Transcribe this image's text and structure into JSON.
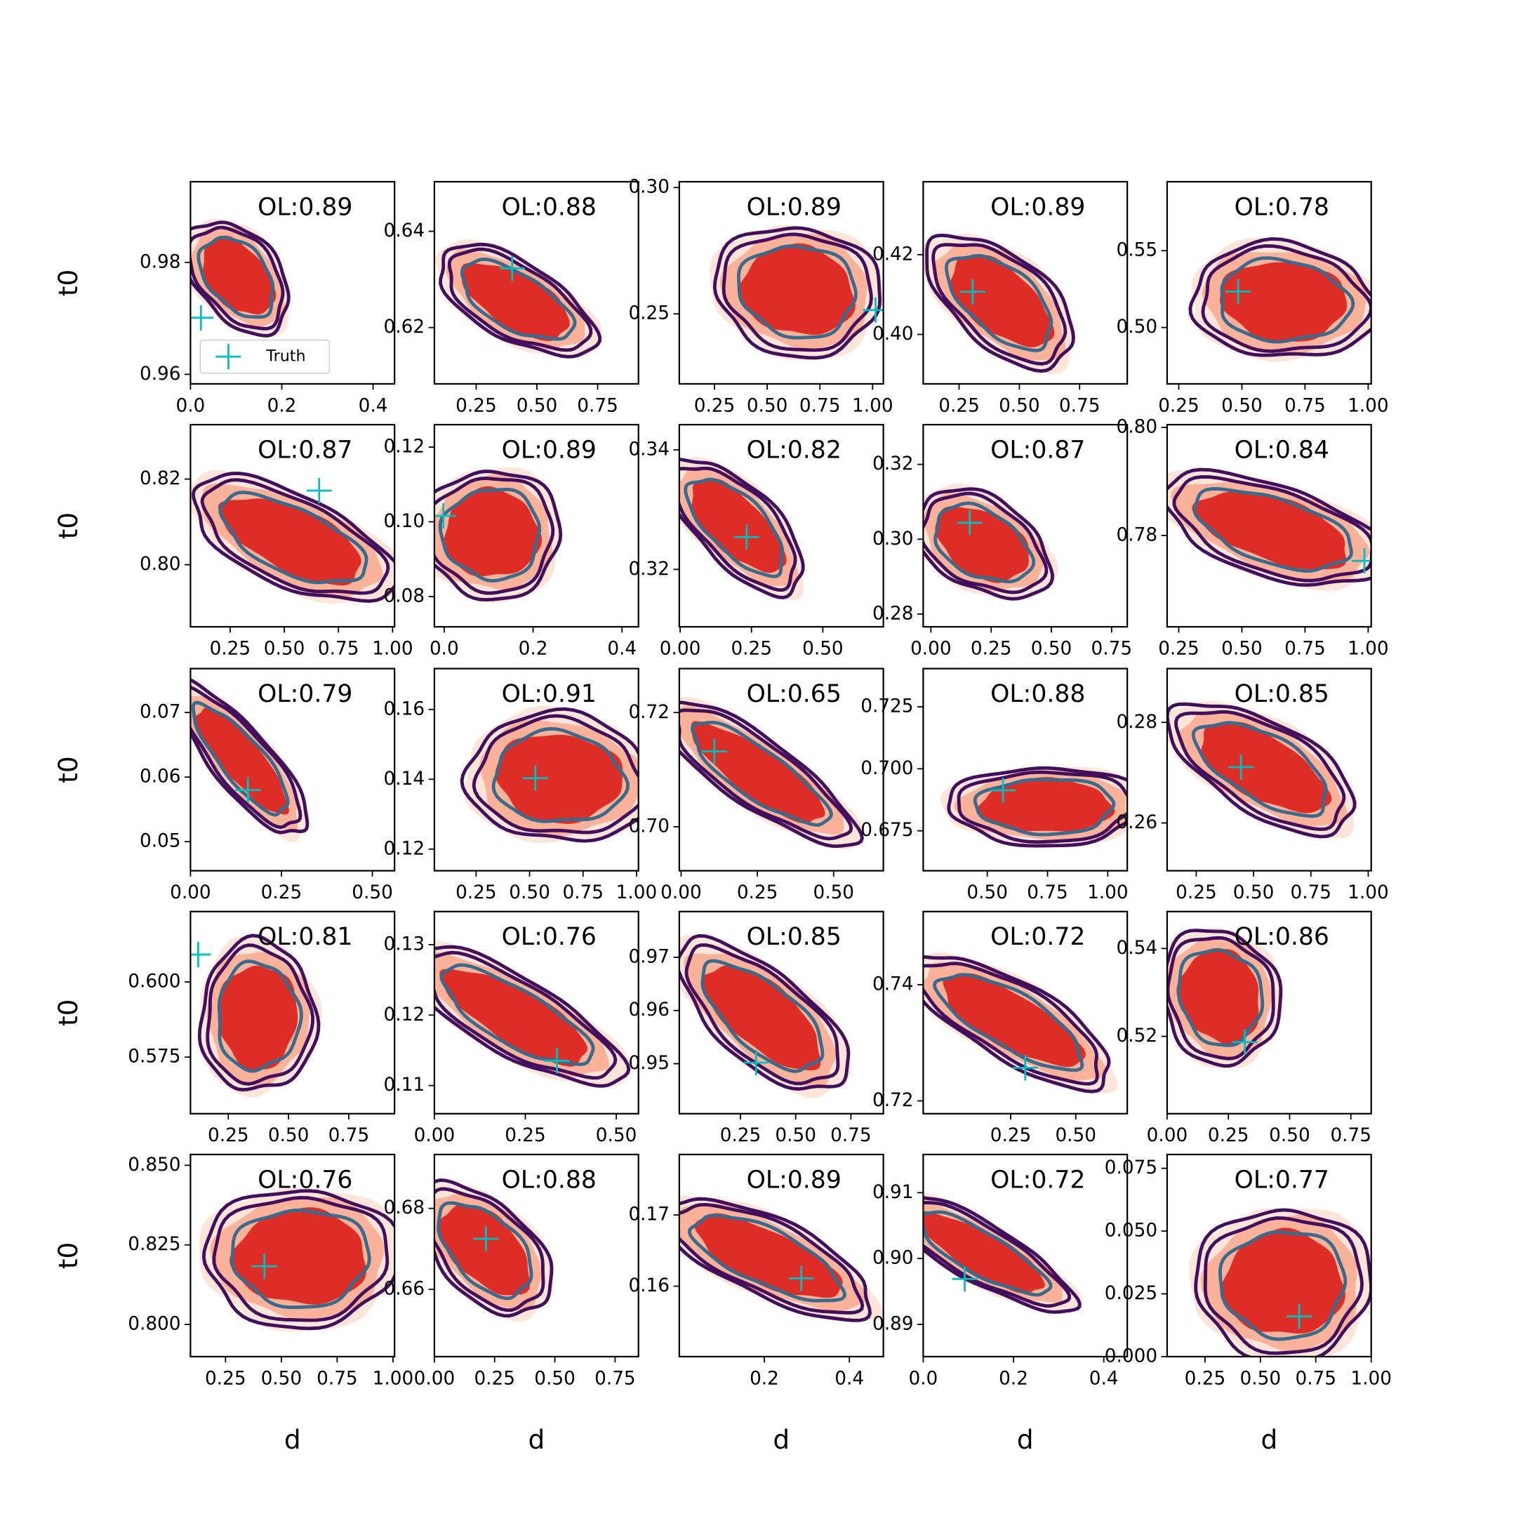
{
  "chart_data": [
    {
      "type": "scatter",
      "annotation": "OL:0.89",
      "xlim": [
        0,
        0.447
      ],
      "xticks": [
        {
          "value": 0,
          "label": "0.0"
        },
        0.2,
        0.4
      ],
      "ylim": [
        0.9583,
        0.9944
      ],
      "yticks": [
        0.96,
        0.98
      ],
      "ylabel": "t0",
      "series": [
        {
          "name": "Truth",
          "color": "#00bfbf",
          "x": [
            0.023
          ],
          "values": [
            0.9701
          ]
        }
      ]
    },
    {
      "type": "scatter",
      "annotation": "OL:0.88",
      "xlim": [
        0.078,
        0.918
      ],
      "xticks": [
        0.25,
        {
          "value": 0.5,
          "label": "0.50"
        },
        0.75
      ],
      "ylim": [
        0.6083,
        0.6503
      ],
      "yticks": [
        0.62,
        0.64
      ],
      "series": [
        {
          "color": "#00bfbf",
          "x": [
            0.398
          ],
          "values": [
            0.6323
          ]
        }
      ]
    },
    {
      "type": "scatter",
      "annotation": "OL:0.89",
      "xlim": [
        0.083,
        1.051
      ],
      "xticks": [
        0.25,
        {
          "value": 0.5,
          "label": "0.50"
        },
        0.75,
        {
          "value": 1,
          "label": "1.00"
        }
      ],
      "ylim": [
        0.2223,
        0.3023
      ],
      "yticks": [
        0.25,
        {
          "value": 0.3,
          "label": "0.30"
        }
      ],
      "series": [
        {
          "color": "#00bfbf",
          "x": [
            1.014
          ],
          "values": [
            0.2515
          ]
        }
      ]
    },
    {
      "type": "scatter",
      "annotation": "OL:0.89",
      "xlim": [
        0.101,
        0.948
      ],
      "xticks": [
        0.25,
        {
          "value": 0.5,
          "label": "0.50"
        },
        0.75
      ],
      "ylim": [
        0.3876,
        0.4383
      ],
      "yticks": [
        {
          "value": 0.4,
          "label": "0.40"
        },
        0.42
      ],
      "series": [
        {
          "color": "#00bfbf",
          "x": [
            0.306
          ],
          "values": [
            0.4107
          ]
        }
      ]
    },
    {
      "type": "scatter",
      "annotation": "OL:0.78",
      "xlim": [
        0.204,
        1.012
      ],
      "xticks": [
        0.25,
        {
          "value": 0.5,
          "label": "0.50"
        },
        0.75,
        {
          "value": 1,
          "label": "1.00"
        }
      ],
      "ylim": [
        0.4633,
        0.5949
      ],
      "yticks": [
        {
          "value": 0.5,
          "label": "0.50"
        },
        0.55
      ],
      "series": [
        {
          "color": "#00bfbf",
          "x": [
            0.485
          ],
          "values": [
            0.5234
          ]
        }
      ]
    },
    {
      "type": "scatter",
      "annotation": "OL:0.87",
      "xlim": [
        0.067,
        1.009
      ],
      "xticks": [
        0.25,
        {
          "value": 0.5,
          "label": "0.50"
        },
        0.75,
        {
          "value": 1,
          "label": "1.00"
        }
      ],
      "ylim": [
        0.7855,
        0.8327
      ],
      "yticks": [
        {
          "value": 0.8,
          "label": "0.80"
        },
        0.82
      ],
      "ylabel": "t0",
      "series": [
        {
          "color": "#00bfbf",
          "x": [
            0.661
          ],
          "values": [
            0.8173
          ]
        }
      ]
    },
    {
      "type": "scatter",
      "annotation": "OL:0.89",
      "xlim": [
        -0.022,
        0.437
      ],
      "xticks": [
        {
          "value": 0,
          "label": "0.0"
        },
        0.2,
        0.4
      ],
      "ylim": [
        0.0719,
        0.126
      ],
      "yticks": [
        0.08,
        {
          "value": 0.1,
          "label": "0.10"
        },
        0.12
      ],
      "series": [
        {
          "color": "#00bfbf",
          "x": [
            -0.002
          ],
          "values": [
            0.1016
          ]
        }
      ]
    },
    {
      "type": "scatter",
      "annotation": "OL:0.82",
      "xlim": [
        -0.003,
        0.712
      ],
      "xticks": [
        {
          "value": 0,
          "label": "0.00"
        },
        0.25,
        {
          "value": 0.5,
          "label": "0.50"
        }
      ],
      "ylim": [
        0.3104,
        0.3442
      ],
      "yticks": [
        0.32,
        0.34
      ],
      "series": [
        {
          "color": "#00bfbf",
          "x": [
            0.233
          ],
          "values": [
            0.3254
          ]
        }
      ]
    },
    {
      "type": "scatter",
      "annotation": "OL:0.87",
      "xlim": [
        -0.032,
        0.815
      ],
      "xticks": [
        {
          "value": 0,
          "label": "0.00"
        },
        0.25,
        {
          "value": 0.5,
          "label": "0.50"
        },
        0.75
      ],
      "ylim": [
        0.2766,
        0.3306
      ],
      "yticks": [
        0.28,
        {
          "value": 0.3,
          "label": "0.30"
        },
        0.32
      ],
      "series": [
        {
          "color": "#00bfbf",
          "x": [
            0.161
          ],
          "values": [
            0.3044
          ]
        }
      ]
    },
    {
      "type": "scatter",
      "annotation": "OL:0.84",
      "xlim": [
        0.204,
        1.012
      ],
      "xticks": [
        0.25,
        {
          "value": 0.5,
          "label": "0.50"
        },
        0.75,
        {
          "value": 1,
          "label": "1.00"
        }
      ],
      "ylim": [
        0.7631,
        0.8005
      ],
      "yticks": [
        0.78,
        {
          "value": 0.8,
          "label": "0.80"
        }
      ],
      "series": [
        {
          "color": "#00bfbf",
          "x": [
            0.985
          ],
          "values": [
            0.7753
          ]
        }
      ]
    },
    {
      "type": "scatter",
      "annotation": "OL:0.79",
      "xlim": [
        0,
        0.561
      ],
      "xticks": [
        {
          "value": 0,
          "label": "0.00"
        },
        0.25,
        {
          "value": 0.5,
          "label": "0.50"
        }
      ],
      "ylim": [
        0.0455,
        0.0768
      ],
      "yticks": [
        0.05,
        0.06,
        0.07
      ],
      "ylabel": "t0",
      "series": [
        {
          "color": "#00bfbf",
          "x": [
            0.158
          ],
          "values": [
            0.058
          ]
        }
      ]
    },
    {
      "type": "scatter",
      "annotation": "OL:0.91",
      "xlim": [
        0.055,
        1.009
      ],
      "xticks": [
        0.25,
        {
          "value": 0.5,
          "label": "0.50"
        },
        0.75,
        {
          "value": 1,
          "label": "1.00"
        }
      ],
      "ylim": [
        0.1138,
        0.1717
      ],
      "yticks": [
        0.12,
        0.14,
        0.16
      ],
      "series": [
        {
          "color": "#00bfbf",
          "x": [
            0.527
          ],
          "values": [
            0.1403
          ]
        }
      ]
    },
    {
      "type": "scatter",
      "annotation": "OL:0.65",
      "xlim": [
        -0.006,
        0.663
      ],
      "xticks": [
        {
          "value": 0,
          "label": "0.00"
        },
        0.25,
        {
          "value": 0.5,
          "label": "0.50"
        }
      ],
      "ylim": [
        0.6923,
        0.7277
      ],
      "yticks": [
        {
          "value": 0.7,
          "label": "0.70"
        },
        0.72
      ],
      "series": [
        {
          "color": "#00bfbf",
          "x": [
            0.109
          ],
          "values": [
            0.7132
          ]
        }
      ]
    },
    {
      "type": "scatter",
      "annotation": "OL:0.88",
      "xlim": [
        0.234,
        1.081
      ],
      "xticks": [
        {
          "value": 0.5,
          "label": "0.50"
        },
        0.75,
        {
          "value": 1,
          "label": "1.00"
        }
      ],
      "ylim": [
        0.6589,
        0.7404
      ],
      "yticks": [
        0.675,
        {
          "value": 0.7,
          "label": "0.700"
        },
        0.725
      ],
      "series": [
        {
          "color": "#00bfbf",
          "x": [
            0.565
          ],
          "values": [
            0.6913
          ]
        }
      ]
    },
    {
      "type": "scatter",
      "annotation": "OL:0.85",
      "xlim": [
        0.123,
        1.013
      ],
      "xticks": [
        0.25,
        {
          "value": 0.5,
          "label": "0.50"
        },
        0.75,
        {
          "value": 1,
          "label": "1.00"
        }
      ],
      "ylim": [
        0.2505,
        0.2907
      ],
      "yticks": [
        0.26,
        0.28
      ],
      "series": [
        {
          "color": "#00bfbf",
          "x": [
            0.445
          ],
          "values": [
            0.2711
          ]
        }
      ]
    },
    {
      "type": "scatter",
      "annotation": "OL:0.81",
      "xlim": [
        0.093,
        0.94
      ],
      "xticks": [
        0.25,
        {
          "value": 0.5,
          "label": "0.50"
        },
        0.75
      ],
      "ylim": [
        0.5562,
        0.6234
      ],
      "yticks": [
        0.575,
        {
          "value": 0.6,
          "label": "0.600"
        }
      ],
      "ylabel": "t0",
      "series": [
        {
          "color": "#00bfbf",
          "x": [
            0.125
          ],
          "values": [
            0.6091
          ]
        }
      ]
    },
    {
      "type": "scatter",
      "annotation": "OL:0.76",
      "xlim": [
        0,
        0.561
      ],
      "xticks": [
        {
          "value": 0,
          "label": "0.00"
        },
        0.25,
        {
          "value": 0.5,
          "label": "0.50"
        }
      ],
      "ylim": [
        0.106,
        0.1347
      ],
      "yticks": [
        0.11,
        0.12,
        0.13
      ],
      "series": [
        {
          "color": "#00bfbf",
          "x": [
            0.337
          ],
          "values": [
            0.1135
          ]
        }
      ]
    },
    {
      "type": "scatter",
      "annotation": "OL:0.85",
      "xlim": [
        -0.027,
        0.897
      ],
      "xticks": [
        0.25,
        {
          "value": 0.5,
          "label": "0.50"
        },
        0.75
      ],
      "ylim": [
        0.9406,
        0.9786
      ],
      "yticks": [
        0.95,
        0.96,
        0.97
      ],
      "series": [
        {
          "color": "#00bfbf",
          "x": [
            0.321
          ],
          "values": [
            0.9502
          ]
        }
      ]
    },
    {
      "type": "scatter",
      "annotation": "OL:0.72",
      "xlim": [
        -0.086,
        0.698
      ],
      "xticks": [
        0.25,
        {
          "value": 0.5,
          "label": "0.50"
        }
      ],
      "ylim": [
        0.7178,
        0.7526
      ],
      "yticks": [
        0.72,
        0.74
      ],
      "series": [
        {
          "color": "#00bfbf",
          "x": [
            0.306
          ],
          "values": [
            0.7257
          ]
        }
      ]
    },
    {
      "type": "scatter",
      "annotation": "OL:0.86",
      "xlim": [
        0,
        0.833
      ],
      "xticks": [
        {
          "value": 0,
          "label": "0.00"
        },
        0.25,
        {
          "value": 0.5,
          "label": "0.50"
        },
        0.75
      ],
      "ylim": [
        0.5024,
        0.5484
      ],
      "yticks": [
        0.52,
        0.54
      ],
      "series": [
        {
          "color": "#00bfbf",
          "x": [
            0.317
          ],
          "values": [
            0.5187
          ]
        }
      ]
    },
    {
      "type": "scatter",
      "annotation": "OL:0.76",
      "xlim": [
        0.093,
        1.007
      ],
      "xticks": [
        0.25,
        {
          "value": 0.5,
          "label": "0.50"
        },
        0.75,
        {
          "value": 1,
          "label": "1.00"
        }
      ],
      "ylim": [
        0.7899,
        0.8534
      ],
      "yticks": [
        {
          "value": 0.8,
          "label": "0.800"
        },
        0.825,
        {
          "value": 0.85,
          "label": "0.850"
        }
      ],
      "ylabel": "t0",
      "xlabel": "d",
      "series": [
        {
          "color": "#00bfbf",
          "x": [
            0.424
          ],
          "values": [
            0.8183
          ]
        }
      ]
    },
    {
      "type": "scatter",
      "annotation": "OL:0.88",
      "xlim": [
        0,
        0.847
      ],
      "xticks": [
        {
          "value": 0,
          "label": "0.00"
        },
        0.25,
        {
          "value": 0.5,
          "label": "0.50"
        },
        0.75
      ],
      "ylim": [
        0.6434,
        0.6933
      ],
      "yticks": [
        0.66,
        0.68
      ],
      "xlabel": "d",
      "series": [
        {
          "color": "#00bfbf",
          "x": [
            0.214
          ],
          "values": [
            0.6725
          ]
        }
      ]
    },
    {
      "type": "scatter",
      "annotation": "OL:0.89",
      "xlim": [
        0,
        0.48
      ],
      "xticks": [
        0.2,
        0.4
      ],
      "ylim": [
        0.1501,
        0.1785
      ],
      "yticks": [
        0.16,
        0.17
      ],
      "xlabel": "d",
      "series": [
        {
          "color": "#00bfbf",
          "x": [
            0.287
          ],
          "values": [
            0.1611
          ]
        }
      ]
    },
    {
      "type": "scatter",
      "annotation": "OL:0.72",
      "xlim": [
        0,
        0.452
      ],
      "xticks": [
        {
          "value": 0,
          "label": "0.0"
        },
        0.2,
        0.4
      ],
      "ylim": [
        0.8851,
        0.9158
      ],
      "yticks": [
        0.89,
        {
          "value": 0.9,
          "label": "0.90"
        },
        0.91
      ],
      "xlabel": "d",
      "series": [
        {
          "color": "#00bfbf",
          "x": [
            0.092
          ],
          "values": [
            0.8969
          ]
        }
      ]
    },
    {
      "type": "scatter",
      "annotation": "OL:0.77",
      "xlim": [
        0.079,
        1.0
      ],
      "xticks": [
        0.25,
        {
          "value": 0.5,
          "label": "0.50"
        },
        0.75,
        {
          "value": 1,
          "label": "1.00"
        }
      ],
      "ylim": [
        0,
        0.0805
      ],
      "yticks": [
        {
          "value": 0,
          "label": "0.000"
        },
        0.025,
        {
          "value": 0.05,
          "label": "0.050"
        },
        0.075
      ],
      "xlabel": "d",
      "series": [
        {
          "color": "#00bfbf",
          "x": [
            0.675
          ],
          "values": [
            0.016
          ]
        }
      ]
    }
  ]
}
